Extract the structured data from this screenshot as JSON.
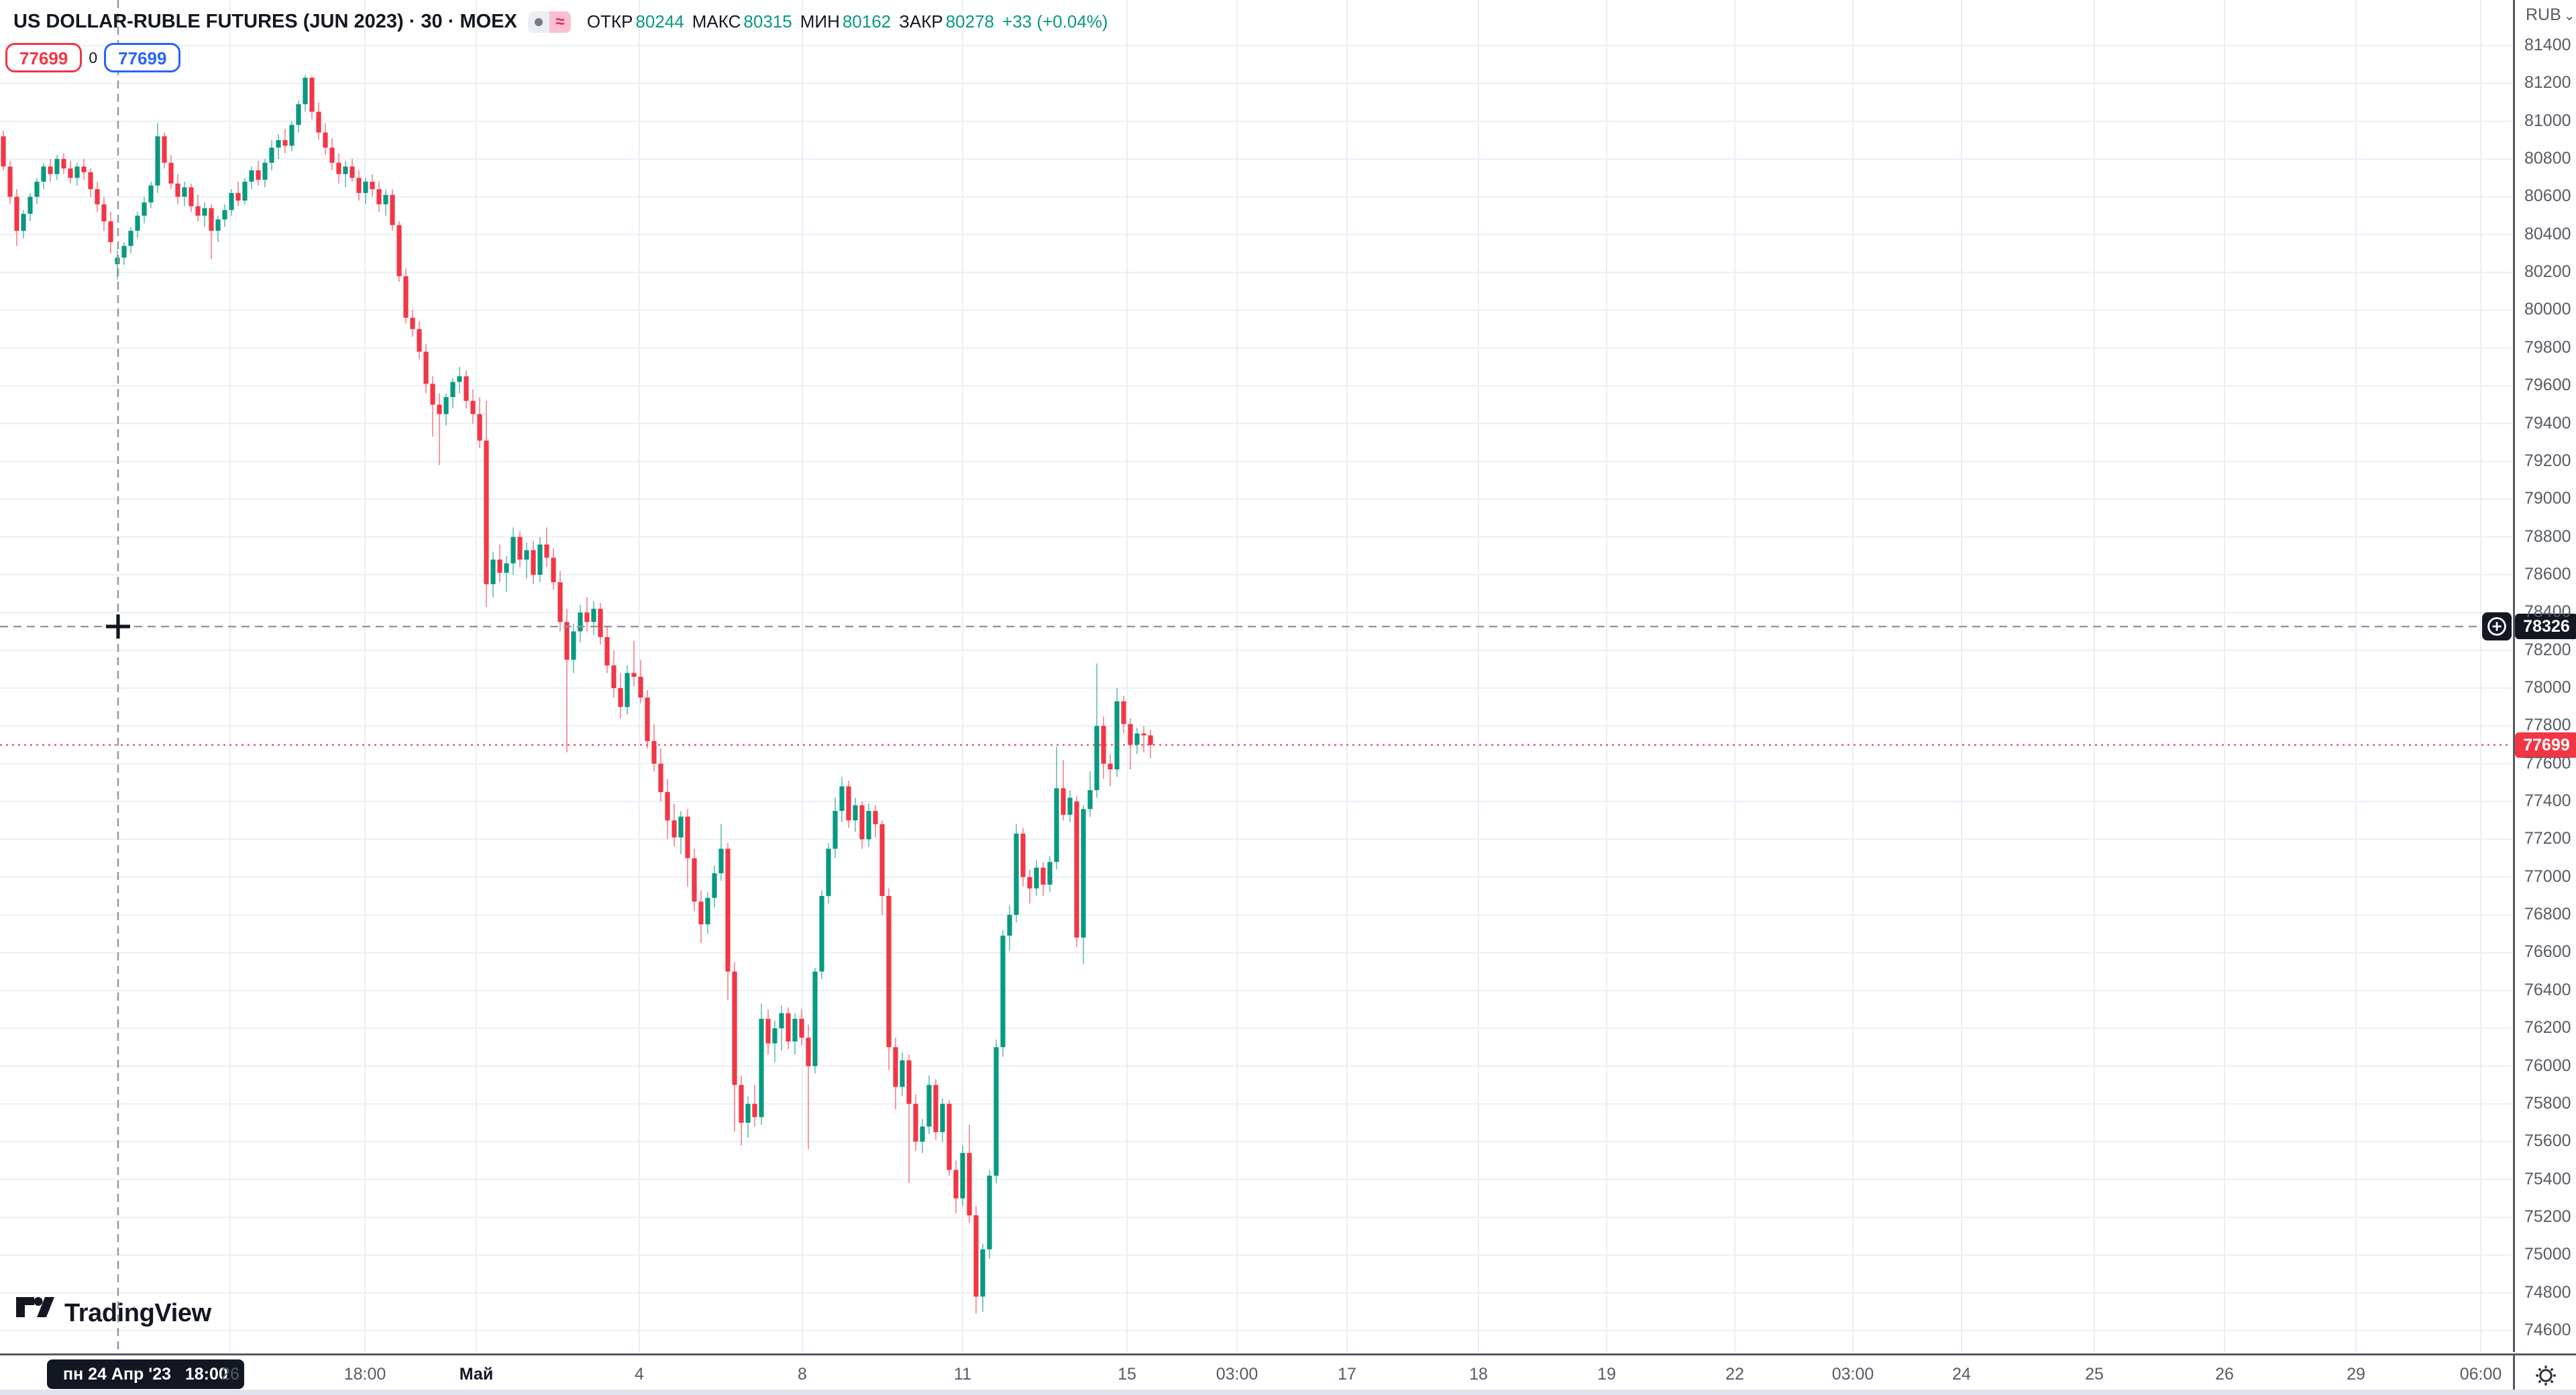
{
  "header": {
    "title": "US DOLLAR-RUBLE FUTURES (JUN 2023) · 30 · MOEX",
    "approx_glyph": "≈",
    "ohlc": {
      "o_label": "ОТКР",
      "o": "80244",
      "h_label": "МАКС",
      "h": "80315",
      "l_label": "МИН",
      "l": "80162",
      "c_label": "ЗАКР",
      "c": "80278",
      "change": "+33 (+0.04%)"
    },
    "price_boxes": {
      "bid": "77699",
      "qty": "0",
      "ask": "77699"
    }
  },
  "price_axis": {
    "currency": "RUB",
    "caret": "⌄",
    "crosshair_badge": "78326",
    "last_badge": "77699"
  },
  "time_axis": {
    "crosshair_badge": "пн 24 Апр '23   18:00",
    "labels": [
      {
        "t": "26",
        "x": 171.5
      },
      {
        "t": "18:00",
        "x": 272
      },
      {
        "t": "Май",
        "x": 355,
        "major": true
      },
      {
        "t": "4",
        "x": 476.5
      },
      {
        "t": "8",
        "x": 598
      },
      {
        "t": "11",
        "x": 717.5
      },
      {
        "t": "15",
        "x": 840
      },
      {
        "t": "03:00",
        "x": 922
      },
      {
        "t": "17",
        "x": 1004
      },
      {
        "t": "18",
        "x": 1102
      },
      {
        "t": "19",
        "x": 1197.5
      },
      {
        "t": "22",
        "x": 1293
      },
      {
        "t": "03:00",
        "x": 1381
      },
      {
        "t": "24",
        "x": 1462
      },
      {
        "t": "25",
        "x": 1561
      },
      {
        "t": "26",
        "x": 1658
      },
      {
        "t": "29",
        "x": 1756
      },
      {
        "t": "06:00",
        "x": 1849
      }
    ]
  },
  "footer_logo": {
    "text": "TradingView"
  },
  "colors": {
    "up": "#089981",
    "down": "#f23645",
    "grid": "#e9eff7",
    "crosshair": "#9196a1",
    "badge_bg": "#131722",
    "accent_blue": "#2962ff",
    "axis_text": "#565b64"
  },
  "chart_data": {
    "type": "candlestick",
    "title": "US DOLLAR-RUBLE FUTURES (JUN 2023), 30-min, MOEX",
    "ylabel": "RUB",
    "ylim": [
      74600,
      81400
    ],
    "grid_step": 200,
    "legend": "single series OHLC candles",
    "crosshair": {
      "x": 88,
      "price": 78326,
      "time": "пн 24 Апр '23 18:00"
    },
    "hover_candle": {
      "open": 80244,
      "high": 80315,
      "low": 80162,
      "close": 80278,
      "change": "+33 (+0.04%)"
    },
    "last_price": 77699,
    "candles": [
      [
        80920,
        80950,
        80740,
        80760
      ],
      [
        80760,
        80790,
        80560,
        80600
      ],
      [
        80600,
        80640,
        80340,
        80420
      ],
      [
        80420,
        80530,
        80380,
        80510
      ],
      [
        80510,
        80620,
        80470,
        80600
      ],
      [
        80600,
        80700,
        80560,
        80680
      ],
      [
        80680,
        80780,
        80640,
        80760
      ],
      [
        80760,
        80800,
        80680,
        80720
      ],
      [
        80720,
        80820,
        80690,
        80800
      ],
      [
        80800,
        80830,
        80720,
        80750
      ],
      [
        80750,
        80790,
        80670,
        80700
      ],
      [
        80700,
        80780,
        80660,
        80760
      ],
      [
        80760,
        80800,
        80690,
        80730
      ],
      [
        80730,
        80750,
        80600,
        80640
      ],
      [
        80640,
        80680,
        80520,
        80560
      ],
      [
        80560,
        80600,
        80420,
        80470
      ],
      [
        80470,
        80520,
        80300,
        80360
      ],
      [
        80244,
        80315,
        80162,
        80278
      ],
      [
        80278,
        80360,
        80240,
        80340
      ],
      [
        80340,
        80440,
        80300,
        80420
      ],
      [
        80420,
        80520,
        80380,
        80500
      ],
      [
        80500,
        80600,
        80460,
        80570
      ],
      [
        80570,
        80680,
        80540,
        80660
      ],
      [
        80660,
        80990,
        80620,
        80920
      ],
      [
        80920,
        80940,
        80750,
        80780
      ],
      [
        80780,
        80820,
        80640,
        80670
      ],
      [
        80670,
        80720,
        80560,
        80600
      ],
      [
        80600,
        80680,
        80550,
        80650
      ],
      [
        80650,
        80670,
        80520,
        80550
      ],
      [
        80550,
        80610,
        80470,
        80500
      ],
      [
        80500,
        80570,
        80440,
        80540
      ],
      [
        80540,
        80560,
        80270,
        80420
      ],
      [
        80420,
        80500,
        80360,
        80480
      ],
      [
        80480,
        80560,
        80440,
        80530
      ],
      [
        80530,
        80640,
        80500,
        80620
      ],
      [
        80620,
        80680,
        80550,
        80580
      ],
      [
        80580,
        80700,
        80560,
        80680
      ],
      [
        80680,
        80760,
        80640,
        80740
      ],
      [
        80740,
        80790,
        80660,
        80690
      ],
      [
        80690,
        80800,
        80650,
        80780
      ],
      [
        80780,
        80900,
        80740,
        80860
      ],
      [
        80860,
        80930,
        80800,
        80900
      ],
      [
        80900,
        80960,
        80830,
        80870
      ],
      [
        80870,
        81000,
        80840,
        80980
      ],
      [
        80980,
        81110,
        80940,
        81090
      ],
      [
        81090,
        81245,
        81050,
        81230
      ],
      [
        81230,
        81240,
        81010,
        81050
      ],
      [
        81050,
        81100,
        80900,
        80940
      ],
      [
        80940,
        80990,
        80820,
        80860
      ],
      [
        80860,
        80910,
        80740,
        80780
      ],
      [
        80780,
        80830,
        80670,
        80720
      ],
      [
        80720,
        80790,
        80650,
        80760
      ],
      [
        80760,
        80800,
        80680,
        80700
      ],
      [
        80700,
        80740,
        80580,
        80620
      ],
      [
        80620,
        80700,
        80560,
        80680
      ],
      [
        80680,
        80720,
        80600,
        80640
      ],
      [
        80640,
        80680,
        80520,
        80560
      ],
      [
        80560,
        80640,
        80500,
        80610
      ],
      [
        80610,
        80640,
        80420,
        80450
      ],
      [
        80450,
        80470,
        80150,
        80180
      ],
      [
        80180,
        80220,
        79930,
        79960
      ],
      [
        79960,
        80000,
        79860,
        79900
      ],
      [
        79900,
        79940,
        79740,
        79780
      ],
      [
        79780,
        79820,
        79560,
        79610
      ],
      [
        79610,
        79650,
        79330,
        79500
      ],
      [
        79500,
        79560,
        79180,
        79450
      ],
      [
        79450,
        79560,
        79390,
        79540
      ],
      [
        79540,
        79640,
        79480,
        79620
      ],
      [
        79620,
        79700,
        79560,
        79650
      ],
      [
        79650,
        79680,
        79480,
        79520
      ],
      [
        79520,
        79580,
        79400,
        79450
      ],
      [
        79450,
        79540,
        79270,
        79310
      ],
      [
        79310,
        79520,
        78430,
        78550
      ],
      [
        78550,
        78720,
        78480,
        78680
      ],
      [
        78680,
        78760,
        78560,
        78610
      ],
      [
        78610,
        78700,
        78510,
        78660
      ],
      [
        78660,
        78850,
        78600,
        78800
      ],
      [
        78800,
        78830,
        78640,
        78680
      ],
      [
        78680,
        78770,
        78580,
        78730
      ],
      [
        78730,
        78780,
        78550,
        78600
      ],
      [
        78600,
        78800,
        78560,
        78760
      ],
      [
        78760,
        78850,
        78640,
        78690
      ],
      [
        78690,
        78740,
        78520,
        78560
      ],
      [
        78560,
        78620,
        78300,
        78350
      ],
      [
        78350,
        78420,
        77660,
        78150
      ],
      [
        78150,
        78340,
        78080,
        78300
      ],
      [
        78300,
        78440,
        78240,
        78400
      ],
      [
        78400,
        78480,
        78300,
        78350
      ],
      [
        78350,
        78460,
        78280,
        78420
      ],
      [
        78420,
        78450,
        78230,
        78270
      ],
      [
        78270,
        78330,
        78080,
        78120
      ],
      [
        78120,
        78200,
        77950,
        78000
      ],
      [
        78000,
        78080,
        77840,
        77900
      ],
      [
        77900,
        78120,
        77860,
        78080
      ],
      [
        78080,
        78250,
        78010,
        78060
      ],
      [
        78060,
        78150,
        77920,
        77950
      ],
      [
        77950,
        77990,
        77680,
        77720
      ],
      [
        77720,
        77810,
        77560,
        77600
      ],
      [
        77600,
        77680,
        77400,
        77450
      ],
      [
        77450,
        77520,
        77200,
        77300
      ],
      [
        77300,
        77390,
        77160,
        77210
      ],
      [
        77210,
        77350,
        77120,
        77320
      ],
      [
        77320,
        77360,
        76950,
        77100
      ],
      [
        77100,
        77150,
        76820,
        76870
      ],
      [
        76870,
        76930,
        76650,
        76750
      ],
      [
        76750,
        76920,
        76700,
        76890
      ],
      [
        76890,
        77060,
        76840,
        77020
      ],
      [
        77020,
        77280,
        76980,
        77150
      ],
      [
        77150,
        77180,
        76350,
        76500
      ],
      [
        76500,
        76550,
        75650,
        75900
      ],
      [
        75900,
        75950,
        75580,
        75700
      ],
      [
        75700,
        75840,
        75620,
        75800
      ],
      [
        75800,
        75900,
        75680,
        75730
      ],
      [
        75730,
        76330,
        75690,
        76250
      ],
      [
        76250,
        76300,
        76060,
        76120
      ],
      [
        76120,
        76240,
        76020,
        76200
      ],
      [
        76200,
        76320,
        76080,
        76280
      ],
      [
        76280,
        76310,
        76090,
        76130
      ],
      [
        76130,
        76280,
        76060,
        76250
      ],
      [
        76250,
        76300,
        76110,
        76150
      ],
      [
        76150,
        76220,
        75560,
        76000
      ],
      [
        76000,
        76520,
        75960,
        76500
      ],
      [
        76500,
        76930,
        76460,
        76900
      ],
      [
        76900,
        77180,
        76860,
        77150
      ],
      [
        77150,
        77420,
        77100,
        77350
      ],
      [
        77350,
        77530,
        77290,
        77480
      ],
      [
        77480,
        77510,
        77260,
        77300
      ],
      [
        77300,
        77420,
        77240,
        77380
      ],
      [
        77380,
        77400,
        77150,
        77200
      ],
      [
        77200,
        77390,
        77160,
        77350
      ],
      [
        77350,
        77380,
        77210,
        77280
      ],
      [
        77280,
        77300,
        76800,
        76900
      ],
      [
        76900,
        76940,
        75980,
        76100
      ],
      [
        76100,
        76150,
        75770,
        75890
      ],
      [
        75890,
        76070,
        75840,
        76030
      ],
      [
        76030,
        76060,
        75380,
        75800
      ],
      [
        75800,
        75850,
        75550,
        75600
      ],
      [
        75600,
        75720,
        75540,
        75680
      ],
      [
        75680,
        75950,
        75640,
        75900
      ],
      [
        75900,
        75930,
        75610,
        75650
      ],
      [
        75650,
        75830,
        75600,
        75800
      ],
      [
        75800,
        75820,
        75420,
        75450
      ],
      [
        75450,
        75500,
        75220,
        75300
      ],
      [
        75300,
        75580,
        75260,
        75540
      ],
      [
        75540,
        75690,
        75170,
        75210
      ],
      [
        75210,
        75260,
        74690,
        74780
      ],
      [
        74780,
        75060,
        74700,
        75030
      ],
      [
        75030,
        75450,
        74980,
        75420
      ],
      [
        75420,
        76140,
        75380,
        76100
      ],
      [
        76100,
        76720,
        76050,
        76690
      ],
      [
        76690,
        76850,
        76610,
        76800
      ],
      [
        76800,
        77280,
        76760,
        77230
      ],
      [
        77230,
        77260,
        76950,
        77000
      ],
      [
        77000,
        77040,
        76860,
        76940
      ],
      [
        76940,
        77090,
        76900,
        77050
      ],
      [
        77050,
        77080,
        76900,
        76960
      ],
      [
        76960,
        77110,
        76920,
        77080
      ],
      [
        77080,
        77690,
        77040,
        77470
      ],
      [
        77470,
        77620,
        77300,
        77330
      ],
      [
        77330,
        77460,
        77290,
        77420
      ],
      [
        77400,
        77430,
        76630,
        76680
      ],
      [
        76680,
        77380,
        76540,
        77360
      ],
      [
        77360,
        77560,
        77320,
        77460
      ],
      [
        77460,
        78130,
        77420,
        77800
      ],
      [
        77800,
        77850,
        77520,
        77600
      ],
      [
        77600,
        77650,
        77480,
        77570
      ],
      [
        77570,
        78000,
        77530,
        77930
      ],
      [
        77930,
        77960,
        77760,
        77810
      ],
      [
        77810,
        77840,
        77570,
        77700
      ],
      [
        77700,
        77790,
        77650,
        77760
      ],
      [
        77760,
        77800,
        77660,
        77750
      ],
      [
        77750,
        77780,
        77630,
        77699
      ]
    ]
  }
}
